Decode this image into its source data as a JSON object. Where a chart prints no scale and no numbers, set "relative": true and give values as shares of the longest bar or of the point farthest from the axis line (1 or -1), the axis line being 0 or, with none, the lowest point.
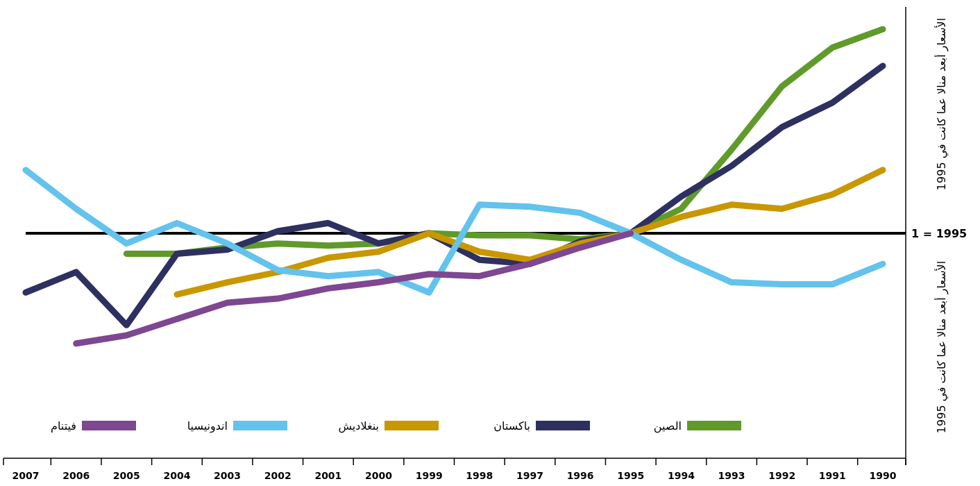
{
  "chart_data": {
    "type": "line",
    "relative": true,
    "legend": "bottom",
    "categories": [
      "2007",
      "2006",
      "2005",
      "2004",
      "2003",
      "2002",
      "2001",
      "2000",
      "1999",
      "1998",
      "1997",
      "1996",
      "1995",
      "1994",
      "1993",
      "1992",
      "1991",
      "1990"
    ],
    "series": [
      {
        "name": "الصين",
        "color": "#5f9a2a",
        "values": [
          null,
          null,
          -0.1,
          -0.1,
          -0.07,
          -0.05,
          -0.06,
          -0.05,
          0.0,
          -0.01,
          -0.01,
          -0.03,
          0,
          0.12,
          0.41,
          0.72,
          0.91,
          1
        ]
      },
      {
        "name": "باكستان",
        "color": "#2e3060",
        "values": [
          -0.29,
          -0.19,
          -0.45,
          -0.1,
          -0.08,
          0.01,
          0.05,
          -0.05,
          0,
          -0.13,
          -0.15,
          -0.04,
          0,
          0.18,
          0.33,
          0.52,
          0.64,
          0.82
        ]
      },
      {
        "name": "بنغلاديش",
        "color": "#c99700",
        "values": [
          null,
          null,
          null,
          -0.3,
          -0.24,
          -0.19,
          -0.12,
          -0.09,
          0,
          -0.09,
          -0.13,
          -0.05,
          0,
          0.08,
          0.14,
          0.12,
          0.19,
          0.31
        ]
      },
      {
        "name": "اندونيسيا",
        "color": "#63c3ec",
        "values": [
          0.31,
          0.12,
          -0.05,
          0.05,
          -0.05,
          -0.18,
          -0.21,
          -0.19,
          -0.29,
          0.14,
          0.13,
          0.1,
          0,
          -0.13,
          -0.24,
          -0.25,
          -0.25,
          -0.15
        ]
      },
      {
        "name": "فيتنام",
        "color": "#7e4791",
        "values": [
          null,
          -0.54,
          -0.5,
          -0.42,
          -0.34,
          -0.32,
          -0.27,
          -0.24,
          -0.2,
          -0.21,
          -0.15,
          -0.07,
          0,
          null,
          null,
          null,
          null,
          null
        ]
      }
    ],
    "ref_lines": [
      {
        "axis": "y",
        "value": 0,
        "color": "#000000"
      }
    ],
    "annotations": [
      "الأسعار أبعد منالا عما كانت في 1995",
      "الأسعار أبعد منالا عما كانت في 1995",
      "1 = 1995"
    ]
  }
}
